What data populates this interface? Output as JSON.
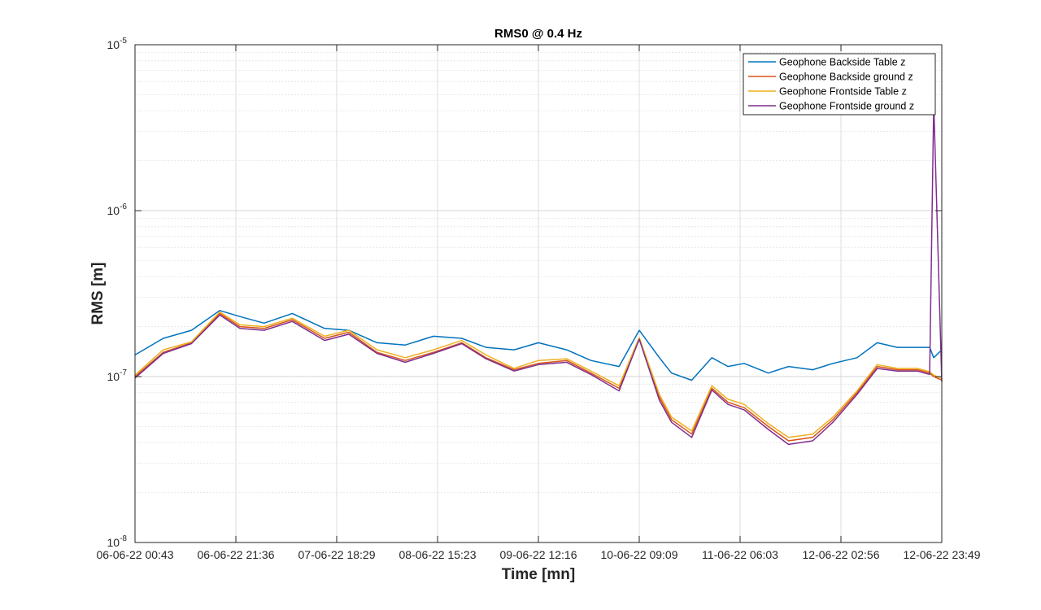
{
  "chart_data": {
    "type": "line",
    "title": "RMS0 @ 0.4 Hz",
    "xlabel": "Time [mn]",
    "ylabel": "RMS [m]",
    "y_scale": "log",
    "ylim": [
      "1e-8",
      "1e-5"
    ],
    "y_ticks": [
      {
        "base": "10",
        "exp": "-8"
      },
      {
        "base": "10",
        "exp": "-7"
      },
      {
        "base": "10",
        "exp": "-6"
      },
      {
        "base": "10",
        "exp": "-5"
      }
    ],
    "x_tick_labels": [
      "06-06-22 00:43",
      "06-06-22 21:36",
      "07-06-22 18:29",
      "08-06-22 15:23",
      "09-06-22 12:16",
      "10-06-22 09:09",
      "11-06-22 06:03",
      "12-06-22 02:56",
      "12-06-22 23:49"
    ],
    "grid": true,
    "minor_grid": true,
    "legend_position": "top-right",
    "x_progress": [
      0.0,
      0.035,
      0.07,
      0.105,
      0.13,
      0.16,
      0.195,
      0.235,
      0.265,
      0.3,
      0.335,
      0.37,
      0.405,
      0.435,
      0.47,
      0.5,
      0.535,
      0.565,
      0.6,
      0.625,
      0.65,
      0.665,
      0.69,
      0.715,
      0.735,
      0.755,
      0.785,
      0.81,
      0.84,
      0.865,
      0.895,
      0.92,
      0.945,
      0.97,
      0.985,
      0.99,
      1.0
    ],
    "series": [
      {
        "name": "Geophone Backside Table z",
        "color": "#0072BD",
        "values": [
          1.35e-07,
          1.7e-07,
          1.9e-07,
          2.5e-07,
          2.3e-07,
          2.1e-07,
          2.4e-07,
          1.95e-07,
          1.9e-07,
          1.6e-07,
          1.55e-07,
          1.75e-07,
          1.7e-07,
          1.5e-07,
          1.45e-07,
          1.6e-07,
          1.45e-07,
          1.25e-07,
          1.15e-07,
          1.9e-07,
          1.3e-07,
          1.05e-07,
          9.5e-08,
          1.3e-07,
          1.15e-07,
          1.2e-07,
          1.05e-07,
          1.15e-07,
          1.1e-07,
          1.2e-07,
          1.3e-07,
          1.6e-07,
          1.5e-07,
          1.5e-07,
          1.5e-07,
          1.3e-07,
          1.45e-07
        ]
      },
      {
        "name": "Geophone Backside ground z",
        "color": "#D95319",
        "values": [
          1e-07,
          1.4e-07,
          1.6e-07,
          2.4e-07,
          2e-07,
          1.95e-07,
          2.2e-07,
          1.7e-07,
          1.85e-07,
          1.4e-07,
          1.25e-07,
          1.4e-07,
          1.6e-07,
          1.3e-07,
          1.1e-07,
          1.2e-07,
          1.25e-07,
          1.05e-07,
          8.5e-08,
          1.7e-07,
          7.5e-08,
          5.5e-08,
          4.5e-08,
          8.5e-08,
          7e-08,
          6.5e-08,
          5e-08,
          4.1e-08,
          4.3e-08,
          5.5e-08,
          8e-08,
          1.15e-07,
          1.1e-07,
          1.1e-07,
          1.05e-07,
          1e-07,
          9.5e-08
        ]
      },
      {
        "name": "Geophone Frontside Table z",
        "color": "#EDB120",
        "values": [
          1.02e-07,
          1.45e-07,
          1.62e-07,
          2.45e-07,
          2.05e-07,
          2e-07,
          2.25e-07,
          1.75e-07,
          1.9e-07,
          1.45e-07,
          1.3e-07,
          1.45e-07,
          1.65e-07,
          1.35e-07,
          1.12e-07,
          1.25e-07,
          1.28e-07,
          1.08e-07,
          8.8e-08,
          1.72e-07,
          7.8e-08,
          5.7e-08,
          4.7e-08,
          8.8e-08,
          7.3e-08,
          6.8e-08,
          5.2e-08,
          4.3e-08,
          4.5e-08,
          5.7e-08,
          8.2e-08,
          1.18e-07,
          1.12e-07,
          1.12e-07,
          1.07e-07,
          1.02e-07,
          9.7e-08
        ]
      },
      {
        "name": "Geophone Frontside ground z",
        "color": "#7E2F8E",
        "values": [
          9.8e-08,
          1.38e-07,
          1.58e-07,
          2.35e-07,
          1.95e-07,
          1.9e-07,
          2.15e-07,
          1.65e-07,
          1.8e-07,
          1.38e-07,
          1.22e-07,
          1.38e-07,
          1.58e-07,
          1.28e-07,
          1.08e-07,
          1.18e-07,
          1.22e-07,
          1.03e-07,
          8.2e-08,
          1.68e-07,
          7.2e-08,
          5.3e-08,
          4.3e-08,
          8.3e-08,
          6.8e-08,
          6.3e-08,
          4.8e-08,
          3.9e-08,
          4.1e-08,
          5.3e-08,
          7.8e-08,
          1.12e-07,
          1.08e-07,
          1.08e-07,
          1.03e-07,
          4.5e-06,
          9.3e-08
        ]
      }
    ]
  }
}
